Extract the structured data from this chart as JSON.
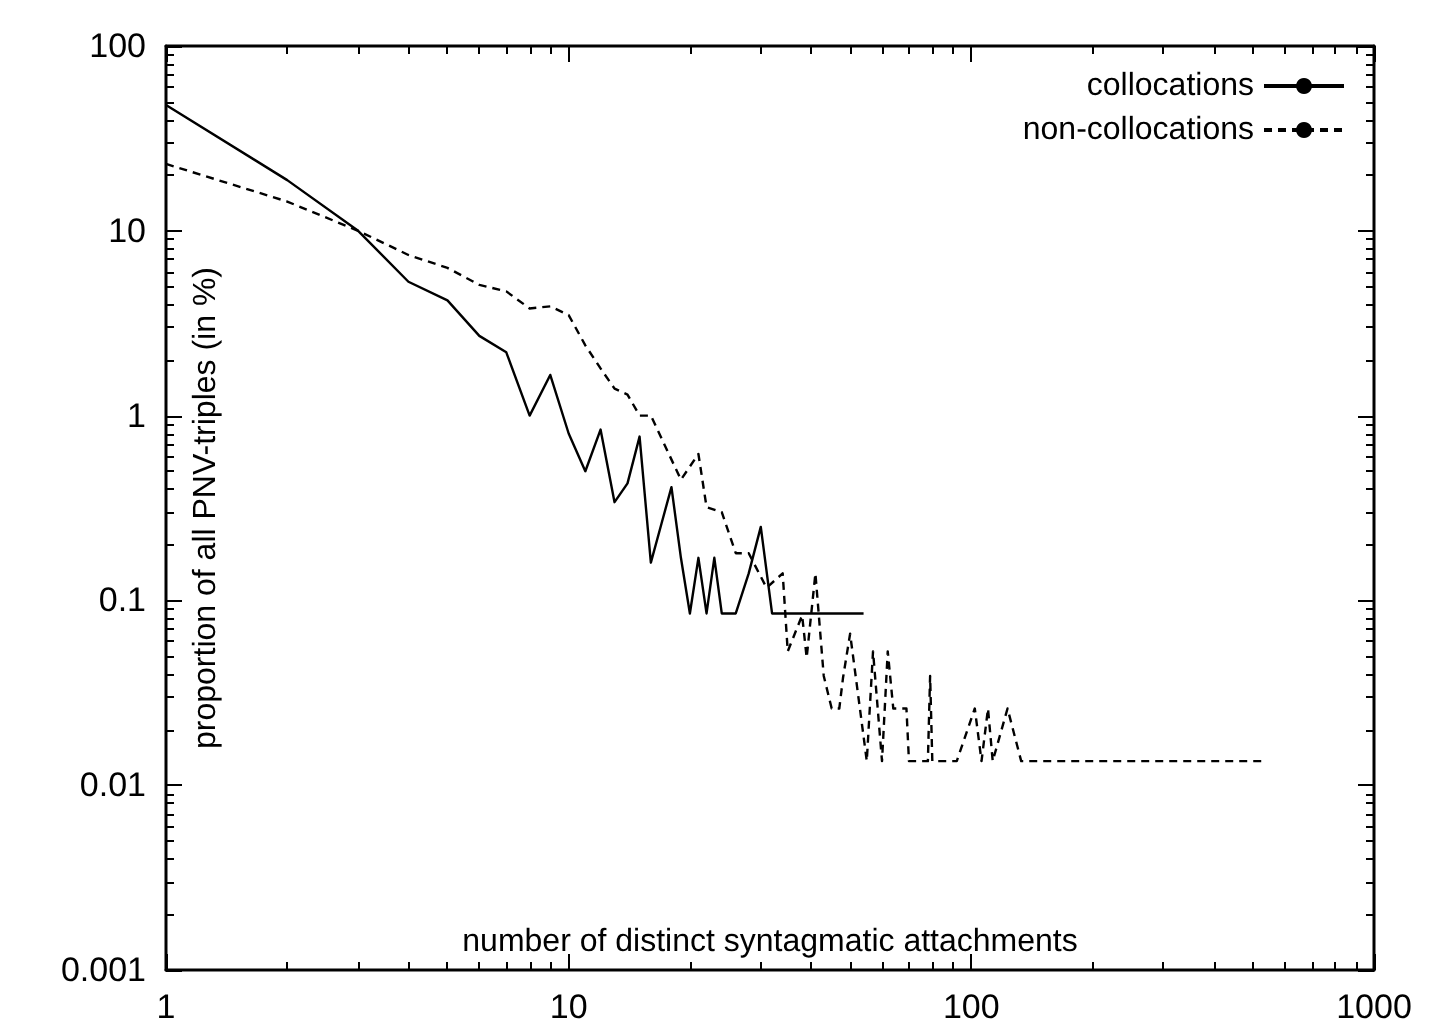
{
  "chart_data": {
    "type": "line",
    "xlabel": "number of distinct syntagmatic attachments",
    "ylabel": "proportion of all PNV-triples (in %)",
    "log": "xy",
    "xlim": [
      1,
      1000
    ],
    "ylim": [
      0.001,
      100
    ],
    "xticks": [
      1,
      10,
      100,
      1000
    ],
    "yticks": [
      0.001,
      0.01,
      0.1,
      1,
      10,
      100
    ],
    "grid": false,
    "legend": "top right",
    "marker": "none",
    "series": [
      {
        "name": "collocations",
        "color": "#000000",
        "line_style": "solid",
        "x": [
          1,
          2,
          3,
          4,
          5,
          6,
          7,
          8,
          9,
          10,
          11,
          12,
          13,
          14,
          15,
          16,
          17,
          18,
          19,
          20,
          21,
          22,
          23,
          24,
          25,
          26,
          28,
          30,
          32,
          54
        ],
        "values": [
          48,
          18.8,
          10,
          5.3,
          4.2,
          2.7,
          2.2,
          1.0,
          1.66,
          0.8,
          0.5,
          0.84,
          0.34,
          0.43,
          0.77,
          0.16,
          0.26,
          0.41,
          0.17,
          0.085,
          0.17,
          0.085,
          0.17,
          0.085,
          0.085,
          0.085,
          0.14,
          0.25,
          0.085,
          0.085
        ]
      },
      {
        "name": "non-collocations",
        "color": "#000000",
        "line_style": "dashed",
        "x": [
          1,
          2,
          3,
          4,
          5,
          6,
          7,
          8,
          9,
          10,
          11,
          12,
          13,
          14,
          15,
          16,
          19,
          21,
          22,
          24,
          26,
          28,
          31,
          34,
          35,
          38,
          39,
          41,
          43,
          45,
          47,
          48,
          50,
          55,
          57,
          60,
          62,
          64,
          69,
          70,
          78,
          79,
          80,
          87,
          92,
          102,
          106,
          110,
          113,
          123,
          133,
          526
        ],
        "values": [
          23,
          14.4,
          10,
          7.4,
          6.3,
          5.1,
          4.7,
          3.8,
          3.9,
          3.5,
          2.4,
          1.8,
          1.4,
          1.3,
          1.0,
          1.0,
          0.45,
          0.62,
          0.32,
          0.3,
          0.18,
          0.18,
          0.117,
          0.14,
          0.053,
          0.083,
          0.049,
          0.14,
          0.039,
          0.026,
          0.026,
          0.038,
          0.066,
          0.0135,
          0.053,
          0.0135,
          0.053,
          0.026,
          0.026,
          0.0135,
          0.0135,
          0.039,
          0.0135,
          0.0135,
          0.0135,
          0.026,
          0.0135,
          0.026,
          0.0135,
          0.026,
          0.0135,
          0.0135
        ]
      }
    ]
  }
}
